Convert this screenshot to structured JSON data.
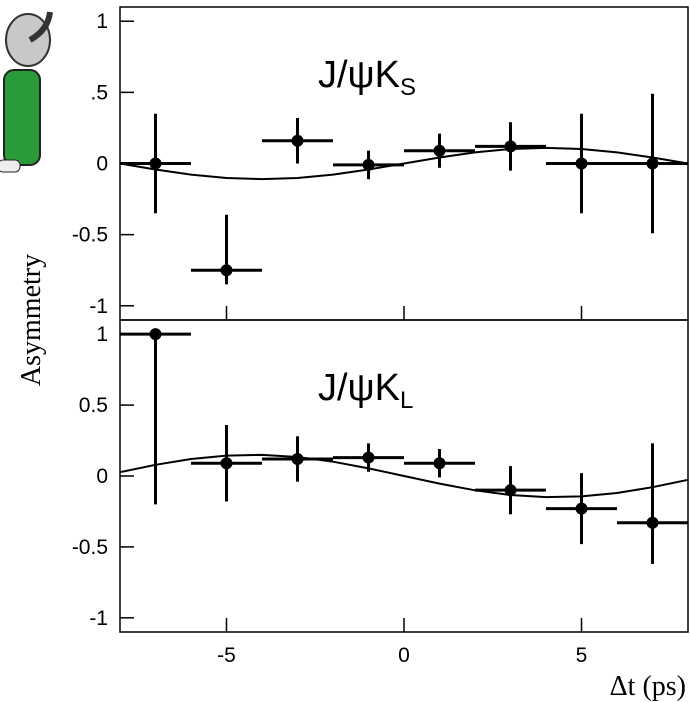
{
  "chart_data": [
    {
      "type": "errorbar",
      "label": "J/ψK",
      "label_sub": "S",
      "ylabel": "Asymmetry",
      "x": [
        -7,
        -5,
        -3,
        -1,
        1,
        3,
        5,
        7
      ],
      "values": [
        0,
        -0.75,
        0.16,
        -0.01,
        0.09,
        0.12,
        0,
        0
      ],
      "xerr": [
        1,
        1,
        1,
        1,
        1,
        1,
        1,
        1
      ],
      "yerr_low": [
        0.35,
        0.1,
        0.16,
        0.1,
        0.12,
        0.17,
        0.35,
        0.49
      ],
      "yerr_high": [
        0.35,
        0.39,
        0.16,
        0.1,
        0.12,
        0.17,
        0.35,
        0.49
      ],
      "fit": {
        "x": [
          -8,
          -7,
          -6,
          -5,
          -4,
          -3,
          -2,
          -1,
          0,
          1,
          2,
          3,
          4,
          5,
          6,
          7,
          8
        ],
        "values": [
          0,
          -0.042,
          -0.078,
          -0.102,
          -0.11,
          -0.102,
          -0.078,
          -0.042,
          0,
          0.042,
          0.078,
          0.102,
          0.11,
          0.102,
          0.078,
          0.042,
          0
        ]
      },
      "xlim": [
        -8,
        8
      ],
      "ylim": [
        -1.1,
        1.1
      ],
      "yticks": [
        -1,
        -0.5,
        0,
        {
          "value": 0.5,
          "label": ".5"
        },
        1
      ],
      "color": "#000000"
    },
    {
      "type": "errorbar",
      "label": "J/ψK",
      "label_sub": "L",
      "xlabel": "Δt (ps)",
      "x": [
        -7,
        -5,
        -3,
        -1,
        1,
        3,
        5,
        7
      ],
      "values": [
        1.0,
        0.09,
        0.12,
        0.13,
        0.09,
        -0.1,
        -0.23,
        -0.33
      ],
      "xerr": [
        1,
        1,
        1,
        1,
        1,
        1,
        1,
        1
      ],
      "yerr_low": [
        1.2,
        0.27,
        0.16,
        0.1,
        0.1,
        0.17,
        0.25,
        0.29
      ],
      "yerr_high": [
        0,
        0.27,
        0.16,
        0.1,
        0.1,
        0.17,
        0.25,
        0.56
      ],
      "fit": {
        "x": [
          -8,
          -7,
          -6,
          -5,
          -4,
          -3,
          -2,
          -1,
          0,
          1,
          2,
          3,
          4,
          5,
          6,
          7,
          8
        ],
        "values": [
          0.027,
          0.079,
          0.12,
          0.144,
          0.149,
          0.134,
          0.101,
          0.054,
          0,
          -0.054,
          -0.101,
          -0.134,
          -0.149,
          -0.144,
          -0.12,
          -0.079,
          -0.027
        ]
      },
      "xlim": [
        -8,
        8
      ],
      "ylim": [
        -1.1,
        1.1
      ],
      "xticks": [
        -5,
        0,
        5
      ],
      "yticks": [
        -1,
        -0.5,
        0,
        0.5,
        1
      ],
      "color": "#000000"
    }
  ]
}
